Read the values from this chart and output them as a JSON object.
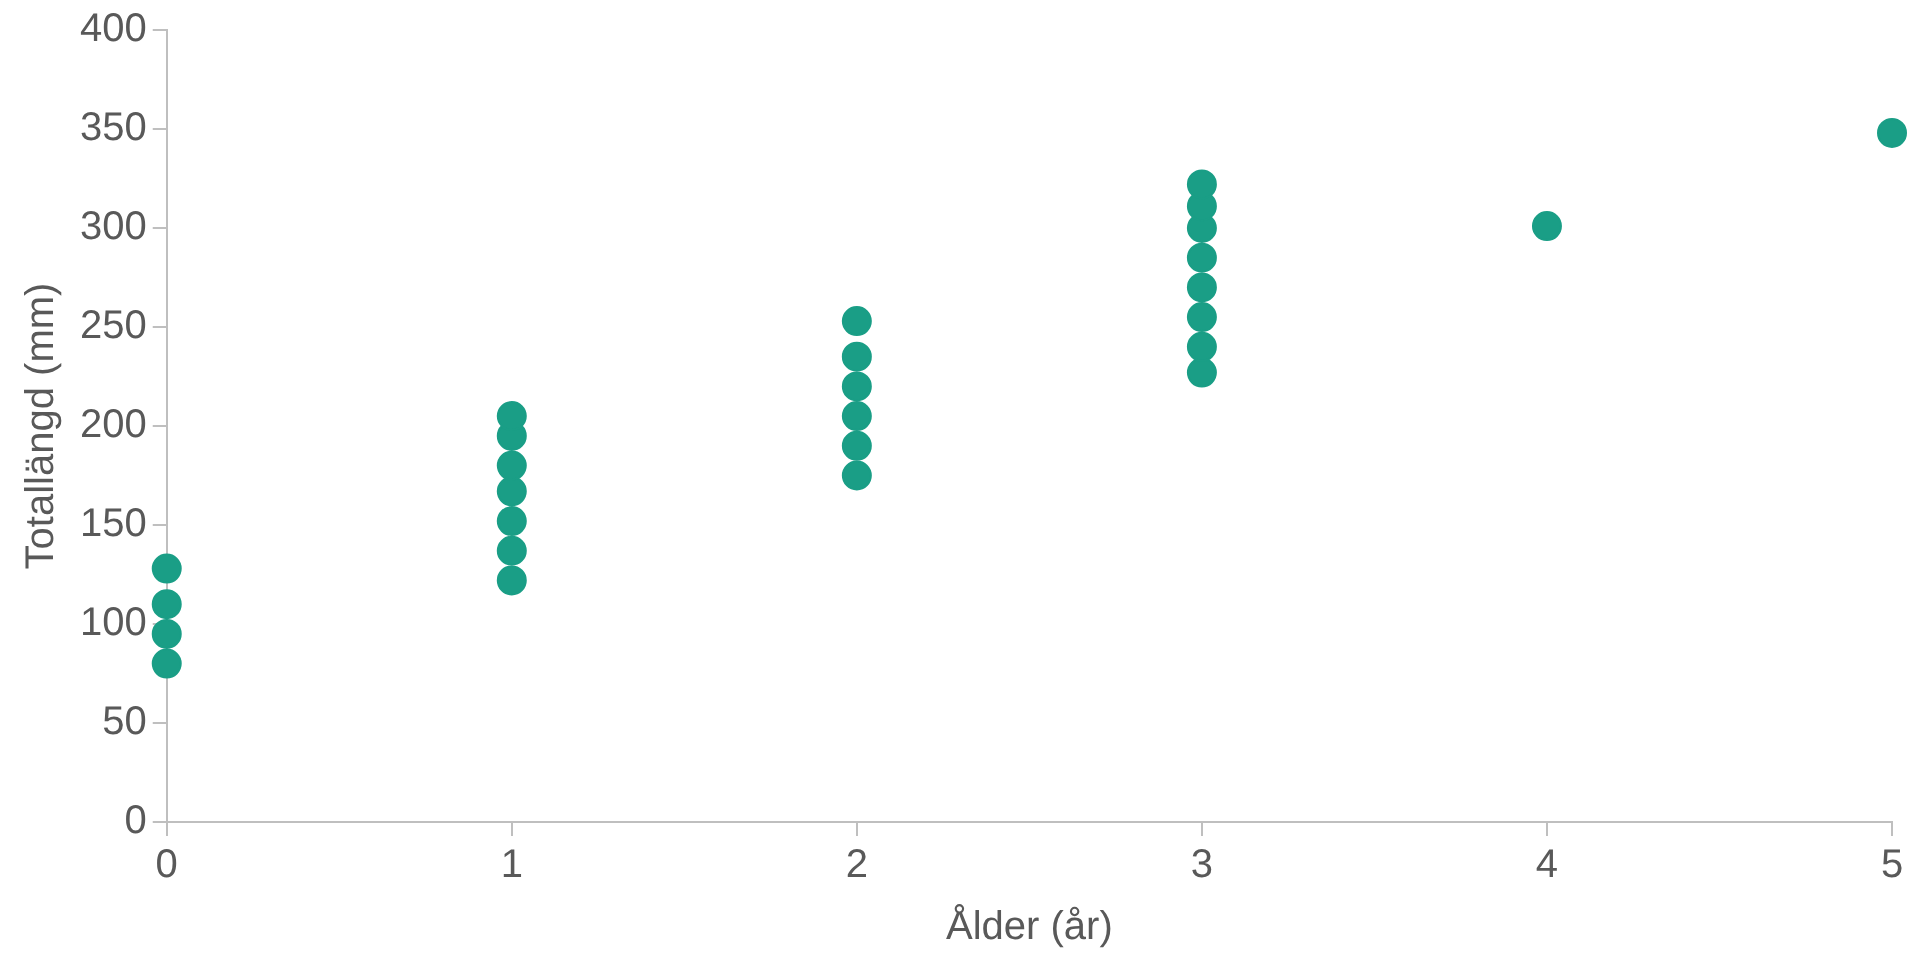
{
  "chart_data": {
    "type": "scatter",
    "xlabel": "Ålder (år)",
    "ylabel": "Totallängd (mm)",
    "marker": "circle",
    "grid": false,
    "legend": false,
    "xlim": [
      0,
      5
    ],
    "xticks": [
      0,
      1,
      2,
      3,
      4,
      5
    ],
    "ylim": [
      0,
      400
    ],
    "yticks": [
      0,
      50,
      100,
      150,
      200,
      250,
      300,
      350,
      400
    ],
    "series": [
      {
        "color": "#1a9e86",
        "x": [
          0,
          0,
          0,
          0,
          1,
          1,
          1,
          1,
          1,
          1,
          1,
          2,
          2,
          2,
          2,
          2,
          2,
          3,
          3,
          3,
          3,
          3,
          3,
          3,
          3,
          4,
          5
        ],
        "values": [
          80,
          95,
          110,
          128,
          122,
          137,
          152,
          167,
          180,
          195,
          205,
          175,
          190,
          205,
          220,
          235,
          253,
          227,
          240,
          255,
          270,
          285,
          300,
          311,
          322,
          301,
          348
        ]
      }
    ]
  }
}
